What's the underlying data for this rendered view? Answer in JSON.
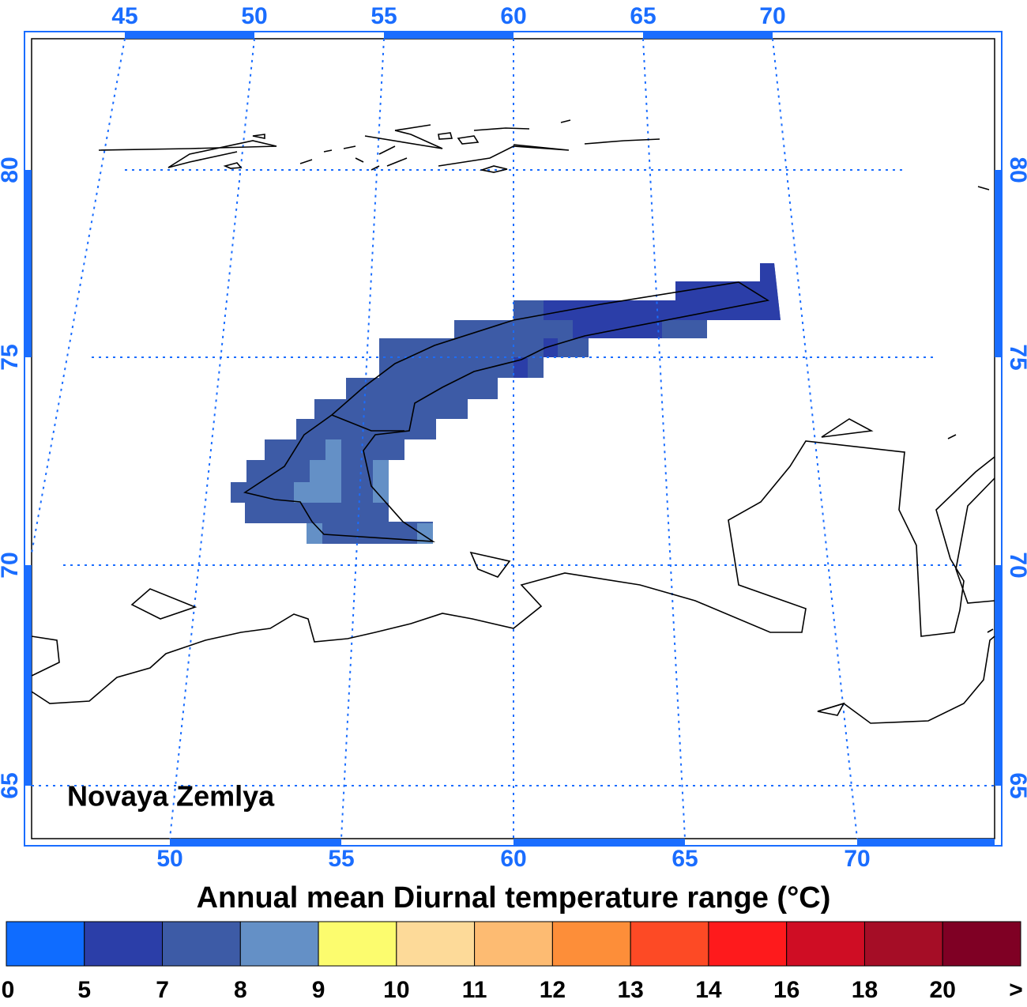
{
  "map": {
    "top_lon_labels": [
      45,
      50,
      55,
      60,
      65,
      70
    ],
    "bottom_lon_labels": [
      50,
      55,
      60,
      65,
      70
    ],
    "left_lat_labels": [
      80,
      75,
      70,
      65
    ],
    "right_lat_labels": [
      80,
      75,
      70,
      65
    ],
    "region_label": "Novaya Zemlya"
  },
  "colorbar": {
    "title": "Annual mean Diurnal temperature range (°C)",
    "colors": [
      "#0f6cff",
      "#2b3ea8",
      "#3d5ba6",
      "#6490c6",
      "#fcfc6e",
      "#fdda99",
      "#fdbb72",
      "#fd8e39",
      "#fd4a25",
      "#fe1a1c",
      "#cf0d24",
      "#a50d26",
      "#7f0024"
    ],
    "labels": [
      0,
      5,
      7,
      8,
      9,
      10,
      11,
      12,
      13,
      14,
      16,
      18,
      20,
      ">"
    ]
  }
}
